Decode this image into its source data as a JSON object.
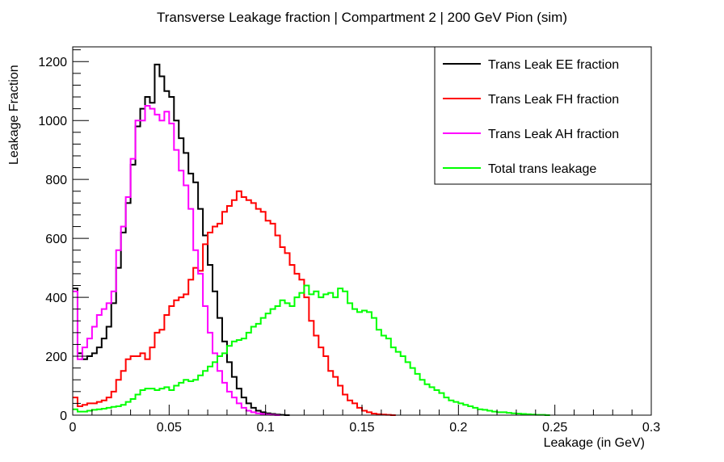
{
  "chart_data": {
    "type": "line",
    "style": "step-histogram",
    "title": "Transverse Leakage fraction | Compartment 2 | 200 GeV Pion (sim)",
    "xlabel": "Leakage (in GeV)",
    "ylabel": "Leakage Fraction",
    "xlim": [
      0,
      0.3
    ],
    "ylim": [
      0,
      1250
    ],
    "x_ticks": [
      0,
      0.05,
      0.1,
      0.15,
      0.2,
      0.25,
      0.3
    ],
    "x_tick_labels": [
      "0",
      "0.05",
      "0.1",
      "0.15",
      "0.2",
      "0.25",
      "0.3"
    ],
    "y_ticks": [
      0,
      200,
      400,
      600,
      800,
      1000,
      1200
    ],
    "y_tick_labels": [
      "0",
      "200",
      "400",
      "600",
      "800",
      "1000",
      "1200"
    ],
    "bin_width": 0.0025,
    "grid": false,
    "legend_position": "top-right",
    "series": [
      {
        "name": "Trans Leak EE fraction",
        "color": "#000000",
        "values": [
          430,
          210,
          190,
          200,
          210,
          230,
          260,
          300,
          380,
          500,
          620,
          720,
          850,
          980,
          1040,
          1080,
          1060,
          1190,
          1150,
          1100,
          1080,
          1000,
          940,
          890,
          820,
          790,
          700,
          610,
          510,
          420,
          330,
          250,
          180,
          130,
          90,
          60,
          40,
          25,
          15,
          10,
          6,
          4,
          2,
          1,
          0
        ]
      },
      {
        "name": "Trans Leak FH fraction",
        "color": "#ff0000",
        "values": [
          60,
          30,
          35,
          40,
          40,
          45,
          50,
          60,
          80,
          120,
          150,
          190,
          200,
          200,
          210,
          190,
          230,
          280,
          290,
          340,
          370,
          390,
          400,
          410,
          460,
          500,
          490,
          580,
          620,
          640,
          650,
          690,
          710,
          730,
          760,
          740,
          730,
          720,
          700,
          690,
          660,
          650,
          610,
          570,
          550,
          510,
          480,
          460,
          400,
          320,
          270,
          230,
          200,
          150,
          130,
          100,
          70,
          50,
          40,
          25,
          15,
          10,
          5,
          3,
          2,
          1,
          0
        ]
      },
      {
        "name": "Trans Leak AH fraction",
        "color": "#ff00ff",
        "values": [
          420,
          190,
          230,
          260,
          300,
          340,
          360,
          380,
          420,
          560,
          640,
          740,
          870,
          1000,
          1000,
          1050,
          1040,
          1020,
          1000,
          1030,
          990,
          900,
          830,
          780,
          700,
          560,
          480,
          370,
          280,
          210,
          150,
          110,
          80,
          60,
          40,
          25,
          15,
          10,
          6,
          4,
          2,
          1,
          0
        ]
      },
      {
        "name": "Total trans leakage",
        "color": "#00ff00",
        "values": [
          20,
          12,
          12,
          15,
          18,
          20,
          22,
          25,
          28,
          30,
          35,
          45,
          55,
          70,
          85,
          90,
          90,
          85,
          90,
          95,
          85,
          100,
          110,
          120,
          115,
          120,
          135,
          150,
          165,
          180,
          200,
          210,
          235,
          250,
          255,
          260,
          280,
          300,
          310,
          330,
          345,
          360,
          370,
          390,
          380,
          370,
          400,
          415,
          440,
          410,
          420,
          400,
          410,
          415,
          400,
          430,
          420,
          380,
          360,
          350,
          355,
          350,
          330,
          290,
          270,
          260,
          230,
          215,
          200,
          180,
          160,
          140,
          120,
          105,
          95,
          85,
          75,
          60,
          50,
          45,
          40,
          35,
          30,
          25,
          20,
          18,
          15,
          12,
          10,
          10,
          8,
          6,
          5,
          4,
          3,
          2,
          1,
          1,
          0
        ]
      }
    ]
  }
}
